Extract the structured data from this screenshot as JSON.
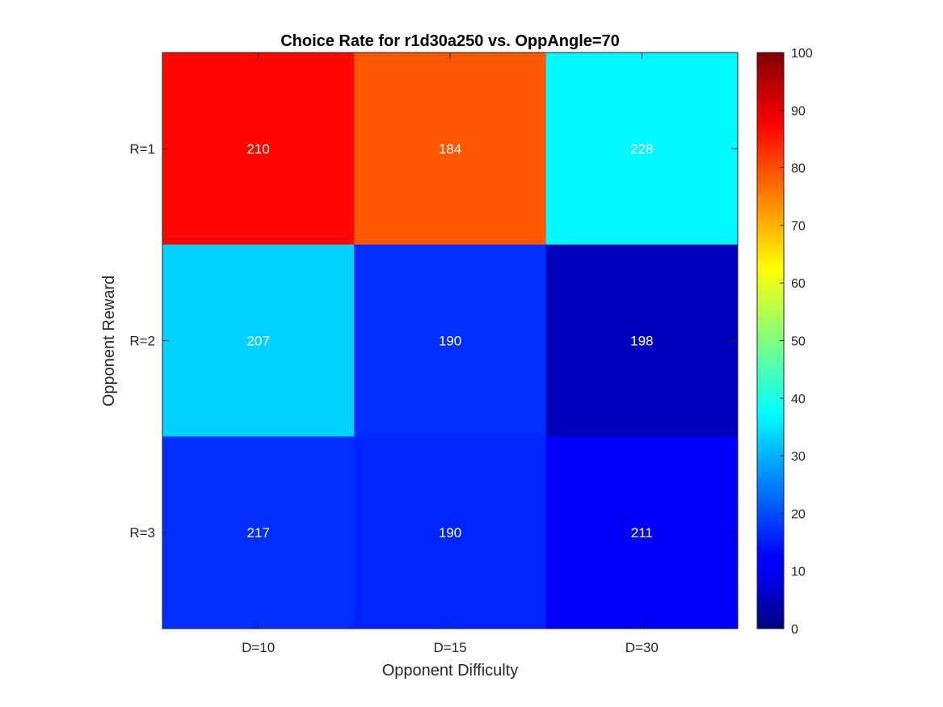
{
  "chart_data": {
    "type": "heatmap",
    "title": "Choice Rate for r1d30a250 vs. OppAngle=70",
    "xlabel": "Opponent Difficulty",
    "ylabel": "Opponent Reward",
    "x_categories": [
      "D=10",
      "D=15",
      "D=30"
    ],
    "y_categories": [
      "R=1",
      "R=2",
      "R=3"
    ],
    "values": [
      [
        87,
        79,
        37
      ],
      [
        33,
        17,
        6
      ],
      [
        17,
        16,
        12
      ]
    ],
    "cell_labels": [
      [
        "210",
        "184",
        "228"
      ],
      [
        "207",
        "190",
        "198"
      ],
      [
        "217",
        "190",
        "211"
      ]
    ],
    "colorbar": {
      "colormap": "jet",
      "min": 0,
      "max": 100,
      "ticks": [
        "0",
        "10",
        "20",
        "30",
        "40",
        "50",
        "60",
        "70",
        "80",
        "90",
        "100"
      ]
    }
  }
}
